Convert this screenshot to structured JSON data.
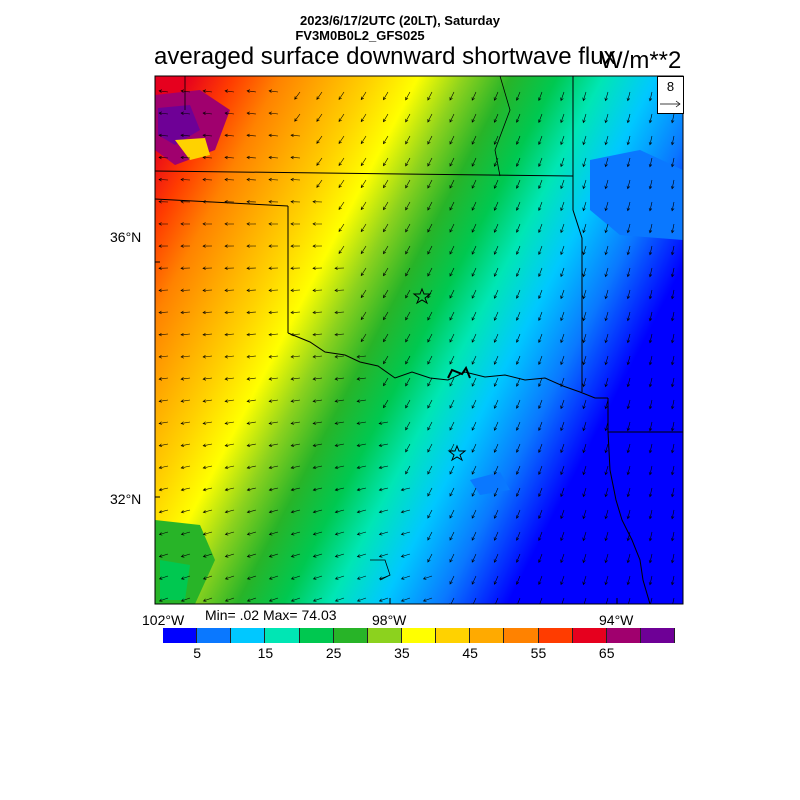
{
  "header": {
    "line1": "2023/6/17/2UTC (20LT), Saturday",
    "line2": "FV3M0B0L2_GFS025",
    "title": "averaged surface downward shortwave flux",
    "units": "W/m**2"
  },
  "map": {
    "lat_labels": [
      "36°N",
      "32°N"
    ],
    "lon_labels": [
      "102°W",
      "98°W",
      "94°W"
    ],
    "stats": "Min= .02 Max= 74.03",
    "vector_reference": "8",
    "markers": [
      "star-marker",
      "star-marker"
    ]
  },
  "colorbar": {
    "colors": [
      "#0000ff",
      "#0a78ff",
      "#00c8ff",
      "#00e6b4",
      "#00c850",
      "#28b428",
      "#8cd21e",
      "#ffff00",
      "#ffd200",
      "#ffaa00",
      "#ff8200",
      "#ff3c00",
      "#e6001e",
      "#a0006e",
      "#6e0096"
    ],
    "labels": [
      "5",
      "15",
      "25",
      "35",
      "45",
      "55",
      "65"
    ]
  }
}
